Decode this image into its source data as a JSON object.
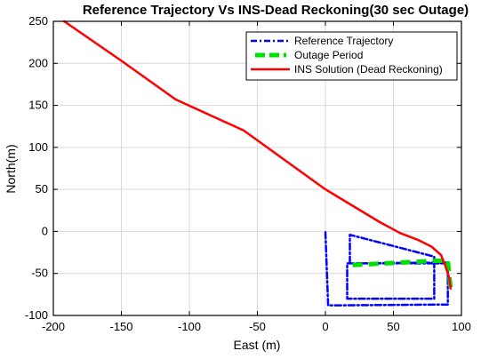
{
  "chart_data": {
    "type": "line",
    "title": "Reference Trajectory Vs INS-Dead Reckoning(30 sec Outage)",
    "xlabel": "East (m)",
    "ylabel": "North(m)",
    "xlim": [
      -200,
      100
    ],
    "ylim": [
      -100,
      250
    ],
    "xticks": [
      -200,
      -150,
      -100,
      -50,
      0,
      50,
      100
    ],
    "yticks": [
      -100,
      -50,
      0,
      50,
      100,
      150,
      200,
      250
    ],
    "grid": true,
    "legend_position": "top-right",
    "series": [
      {
        "name": "Reference Trajectory",
        "color": "#0000ff",
        "style": "dash-dot",
        "x": [
          0,
          2,
          2,
          90,
          90,
          18,
          18,
          80,
          80,
          16,
          16,
          90,
          90
        ],
        "y": [
          -1,
          -88,
          -88,
          -87,
          -37,
          -38,
          -4,
          -30,
          -80,
          -80,
          -38,
          -38,
          -60
        ]
      },
      {
        "name": "Outage Period",
        "color": "#00e000",
        "style": "dashed",
        "x": [
          20,
          80,
          90,
          92
        ],
        "y": [
          -40,
          -35,
          -35,
          -68
        ]
      },
      {
        "name": "INS Solution (Dead Reckoning)",
        "color": "#ff0000",
        "style": "solid",
        "x": [
          -192,
          -150,
          -110,
          -60,
          0,
          40,
          55,
          68,
          78,
          85,
          88,
          91,
          92
        ],
        "y": [
          250,
          203,
          157,
          120,
          50,
          11,
          -2,
          -10,
          -18,
          -28,
          -40,
          -55,
          -68
        ]
      }
    ]
  }
}
